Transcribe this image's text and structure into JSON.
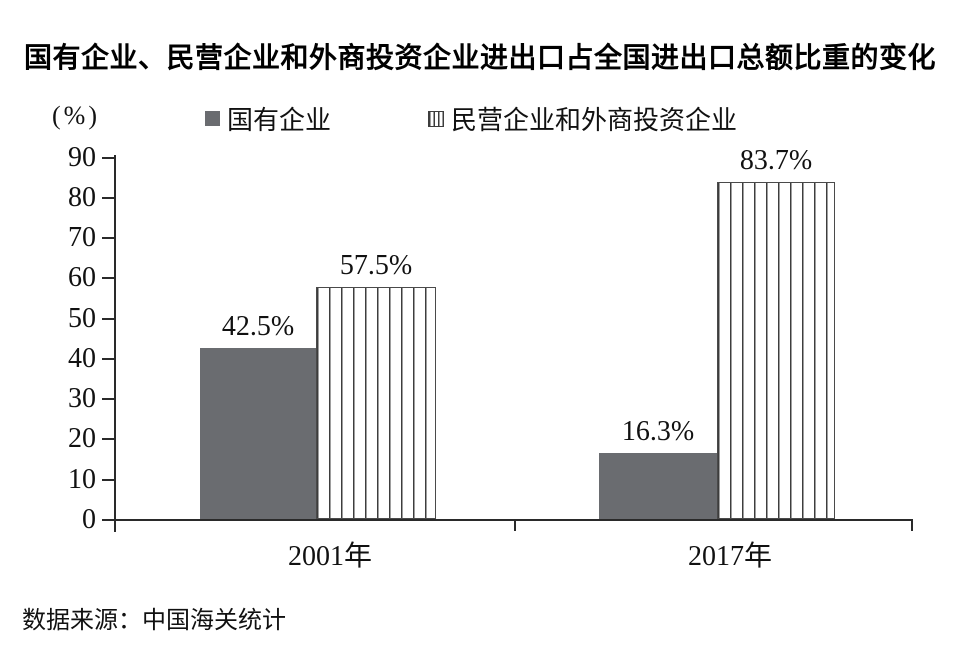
{
  "title": "国有企业、民营企业和外商投资企业进出口占全国进出口总额比重的变化",
  "y_axis_unit": "(%)",
  "legend": {
    "items": [
      {
        "label": "国有企业",
        "swatch": "solid-gray-square-icon",
        "color": "#6a6c70"
      },
      {
        "label": "民营企业和外商投资企业",
        "swatch": "vertical-striped-square-icon",
        "color": "#3d3d3d"
      }
    ]
  },
  "source": "数据来源：中国海关统计",
  "colors": {
    "solid_bar": "#6a6c70",
    "stripe_line": "#3d3d3d",
    "axis": "#2a2a2a",
    "text": "#111111",
    "background": "#ffffff"
  },
  "chart_data": {
    "type": "bar",
    "title": "国有企业、民营企业和外商投资企业进出口占全国进出口总额比重的变化",
    "categories": [
      "2001年",
      "2017年"
    ],
    "series": [
      {
        "name": "国有企业",
        "style": "solid",
        "color": "#6a6c70",
        "values": [
          42.5,
          16.3
        ],
        "labels": [
          "42.5%",
          "16.3%"
        ]
      },
      {
        "name": "民营企业和外商投资企业",
        "style": "striped",
        "color": "#ffffff",
        "values": [
          57.5,
          83.7
        ],
        "labels": [
          "57.5%",
          "83.7%"
        ]
      }
    ],
    "xlabel": "",
    "ylabel": "(%)",
    "ylim": [
      0,
      90
    ],
    "yticks": [
      0,
      10,
      20,
      30,
      40,
      50,
      60,
      70,
      80,
      90
    ],
    "grid": false,
    "legend_position": "top",
    "data_labels_shown": true,
    "source": "数据来源：中国海关统计"
  }
}
